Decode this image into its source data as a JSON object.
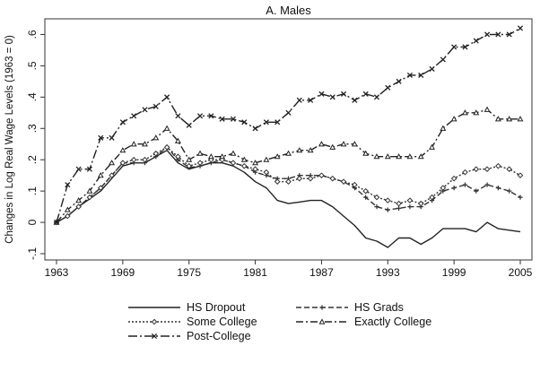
{
  "chart_data": {
    "type": "line",
    "title": "A. Males",
    "ylabel": "Changes in Log Real Wage Levels (1963 = 0)",
    "xlabel": "",
    "xlim": [
      1963,
      2005
    ],
    "ylim": [
      -0.12,
      0.65
    ],
    "x_ticks": [
      1963,
      1969,
      1975,
      1981,
      1987,
      1993,
      1999,
      2005
    ],
    "y_ticks": [
      {
        "value": -0.1,
        "label": "-.1"
      },
      {
        "value": 0,
        "label": "0"
      },
      {
        "value": 0.1,
        "label": ".1"
      },
      {
        "value": 0.2,
        "label": ".2"
      },
      {
        "value": 0.3,
        "label": ".3"
      },
      {
        "value": 0.4,
        "label": ".4"
      },
      {
        "value": 0.5,
        "label": ".5"
      },
      {
        "value": 0.6,
        "label": ".6"
      }
    ],
    "grid": false,
    "legend_position": "bottom",
    "x": [
      1963,
      1964,
      1965,
      1966,
      1967,
      1968,
      1969,
      1970,
      1971,
      1972,
      1973,
      1974,
      1975,
      1976,
      1977,
      1978,
      1979,
      1980,
      1981,
      1982,
      1983,
      1984,
      1985,
      1986,
      1987,
      1988,
      1989,
      1990,
      1991,
      1992,
      1993,
      1994,
      1995,
      1996,
      1997,
      1998,
      1999,
      2000,
      2001,
      2002,
      2003,
      2004,
      2005
    ],
    "series": [
      {
        "name": "HS Dropout",
        "color": "#222222",
        "dash": "",
        "marker": "none",
        "values": [
          0,
          0.02,
          0.05,
          0.075,
          0.1,
          0.14,
          0.18,
          0.19,
          0.19,
          0.21,
          0.23,
          0.19,
          0.17,
          0.18,
          0.19,
          0.19,
          0.18,
          0.16,
          0.13,
          0.11,
          0.07,
          0.06,
          0.065,
          0.07,
          0.07,
          0.05,
          0.02,
          -0.01,
          -0.05,
          -0.06,
          -0.08,
          -0.05,
          -0.05,
          -0.07,
          -0.05,
          -0.02,
          -0.02,
          -0.02,
          -0.03,
          0,
          -0.02,
          -0.025,
          -0.03
        ]
      },
      {
        "name": "HS Grads",
        "color": "#333333",
        "dash": "6 3",
        "marker": "plus",
        "values": [
          0,
          0.02,
          0.05,
          0.08,
          0.11,
          0.15,
          0.19,
          0.19,
          0.19,
          0.21,
          0.24,
          0.2,
          0.175,
          0.18,
          0.19,
          0.2,
          0.19,
          0.18,
          0.16,
          0.15,
          0.14,
          0.14,
          0.15,
          0.15,
          0.15,
          0.14,
          0.13,
          0.11,
          0.08,
          0.05,
          0.04,
          0.045,
          0.05,
          0.05,
          0.07,
          0.1,
          0.11,
          0.12,
          0.1,
          0.12,
          0.11,
          0.1,
          0.08
        ]
      },
      {
        "name": "Some College",
        "color": "#333333",
        "dash": "2 2",
        "marker": "diamond",
        "values": [
          0,
          0.02,
          0.05,
          0.08,
          0.11,
          0.15,
          0.19,
          0.2,
          0.2,
          0.22,
          0.24,
          0.21,
          0.18,
          0.19,
          0.2,
          0.2,
          0.19,
          0.18,
          0.17,
          0.16,
          0.13,
          0.13,
          0.14,
          0.14,
          0.15,
          0.14,
          0.13,
          0.12,
          0.1,
          0.08,
          0.07,
          0.06,
          0.07,
          0.06,
          0.08,
          0.11,
          0.14,
          0.16,
          0.17,
          0.17,
          0.18,
          0.17,
          0.15
        ]
      },
      {
        "name": "Exactly College",
        "color": "#222222",
        "dash": "8 3 2 3",
        "marker": "triangle",
        "values": [
          0,
          0.04,
          0.07,
          0.1,
          0.15,
          0.19,
          0.23,
          0.25,
          0.25,
          0.27,
          0.3,
          0.26,
          0.2,
          0.22,
          0.21,
          0.21,
          0.22,
          0.2,
          0.19,
          0.2,
          0.21,
          0.22,
          0.23,
          0.23,
          0.25,
          0.24,
          0.25,
          0.25,
          0.22,
          0.21,
          0.21,
          0.21,
          0.21,
          0.21,
          0.24,
          0.3,
          0.33,
          0.35,
          0.35,
          0.36,
          0.33,
          0.33,
          0.33
        ]
      },
      {
        "name": "Post-College",
        "color": "#222222",
        "dash": "10 3 2 3",
        "marker": "x",
        "values": [
          0,
          0.12,
          0.17,
          0.17,
          0.27,
          0.27,
          0.32,
          0.34,
          0.36,
          0.37,
          0.4,
          0.34,
          0.31,
          0.34,
          0.34,
          0.33,
          0.33,
          0.32,
          0.3,
          0.32,
          0.32,
          0.35,
          0.39,
          0.39,
          0.41,
          0.4,
          0.41,
          0.39,
          0.41,
          0.4,
          0.43,
          0.45,
          0.47,
          0.47,
          0.49,
          0.52,
          0.56,
          0.56,
          0.58,
          0.6,
          0.6,
          0.6,
          0.62
        ]
      }
    ],
    "legend_layout": [
      [
        "HS Dropout",
        "HS Grads"
      ],
      [
        "Some College",
        "Exactly College"
      ],
      [
        "Post-College"
      ]
    ]
  }
}
